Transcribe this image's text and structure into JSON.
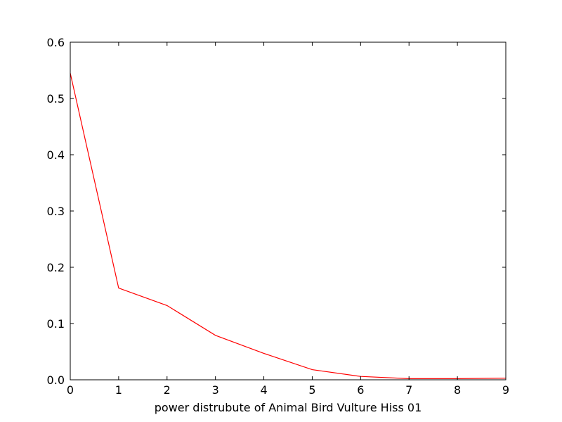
{
  "chart_data": {
    "type": "line",
    "title": "",
    "xlabel": "power distrubute of Animal Bird Vulture Hiss 01",
    "ylabel": "",
    "xlim": [
      0,
      9
    ],
    "ylim": [
      0,
      0.6
    ],
    "xticks": [
      "0",
      "1",
      "2",
      "3",
      "4",
      "5",
      "6",
      "7",
      "8",
      "9"
    ],
    "yticks": [
      "0.0",
      "0.1",
      "0.2",
      "0.3",
      "0.4",
      "0.5",
      "0.6"
    ],
    "grid": false,
    "series": [
      {
        "color": "#ff0000",
        "x": [
          0,
          1,
          2,
          3,
          4,
          5,
          6,
          7,
          8,
          9
        ],
        "y": [
          0.545,
          0.163,
          0.132,
          0.079,
          0.047,
          0.018,
          0.006,
          0.002,
          0.002,
          0.003
        ]
      }
    ]
  }
}
